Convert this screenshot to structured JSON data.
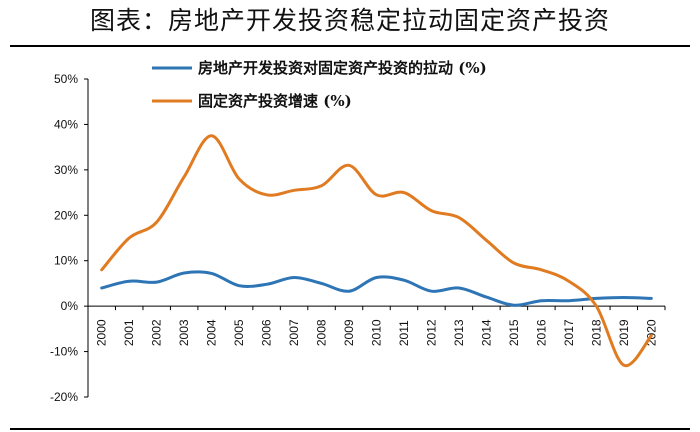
{
  "chart_data": {
    "type": "line",
    "title": "图表：房地产开发投资稳定拉动固定资产投资",
    "xlabel": "",
    "ylabel": "",
    "x": [
      "2000",
      "2001",
      "2002",
      "2003",
      "2004",
      "2005",
      "2006",
      "2007",
      "2008",
      "2009",
      "2010",
      "2011",
      "2012",
      "2013",
      "2014",
      "2015",
      "2016",
      "2017",
      "2018",
      "2019",
      "2020"
    ],
    "ylim": [
      -20,
      50
    ],
    "yticks": [
      -20,
      -10,
      0,
      10,
      20,
      30,
      40,
      50
    ],
    "ytick_labels": [
      "-20%",
      "-10%",
      "0%",
      "10%",
      "20%",
      "30%",
      "40%",
      "50%"
    ],
    "legend_position": "top",
    "series": [
      {
        "name": "房地产开发投资对固定资产投资的拉动 (%)",
        "color": "#2e75b6",
        "values": [
          4.0,
          5.5,
          5.3,
          7.3,
          7.2,
          4.5,
          4.8,
          6.3,
          5.0,
          3.3,
          6.3,
          5.7,
          3.3,
          4.0,
          2.0,
          0.2,
          1.2,
          1.2,
          1.7,
          1.9,
          1.7
        ]
      },
      {
        "name": "固定资产投资增速 (%)",
        "color": "#e07b21",
        "values": [
          8.0,
          15.0,
          18.5,
          28.5,
          37.5,
          28.0,
          24.5,
          25.5,
          26.5,
          31.0,
          24.5,
          25.0,
          21.0,
          19.5,
          14.5,
          9.5,
          8.0,
          5.5,
          0.0,
          -13.0,
          -6.5
        ]
      }
    ]
  }
}
